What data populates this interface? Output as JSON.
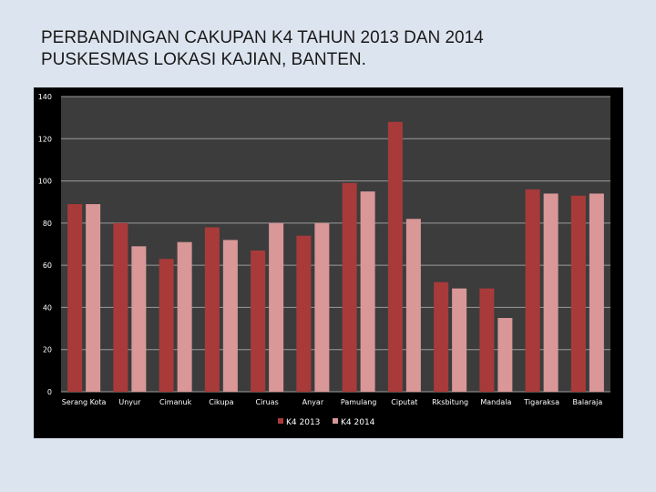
{
  "slide": {
    "title_line1": "PERBANDINGAN CAKUPAN K4 TAHUN 2013 DAN 2014",
    "title_line2": "PUSKESMAS LOKASI KAJIAN, BANTEN."
  },
  "colors": {
    "background": "#dce4ef",
    "chart_background": "#000000",
    "plot_area": "#3c3c3c",
    "gridline": "#9a9a9a",
    "axis_text": "#ffffff",
    "series_2013": "#a83a3a",
    "series_2014": "#d99797"
  },
  "chart_data": {
    "type": "bar",
    "title": "",
    "xlabel": "",
    "ylabel": "",
    "ylim": [
      0,
      140
    ],
    "yticks": [
      0,
      20,
      40,
      60,
      80,
      100,
      120,
      140
    ],
    "grid": true,
    "legend_position": "bottom",
    "categories": [
      "Serang Kota",
      "Unyur",
      "Cimanuk",
      "Cikupa",
      "Ciruas",
      "Anyar",
      "Pamulang",
      "Ciputat",
      "Rksbitung",
      "Mandala",
      "Tigaraksa",
      "Balaraja"
    ],
    "series": [
      {
        "name": "K4 2013",
        "color": "#a83a3a",
        "values": [
          89,
          80,
          63,
          78,
          67,
          74,
          99,
          128,
          52,
          49,
          96,
          93
        ]
      },
      {
        "name": "K4 2014",
        "color": "#d99797",
        "values": [
          89,
          69,
          71,
          72,
          80,
          80,
          95,
          82,
          49,
          35,
          94,
          94
        ]
      }
    ]
  }
}
